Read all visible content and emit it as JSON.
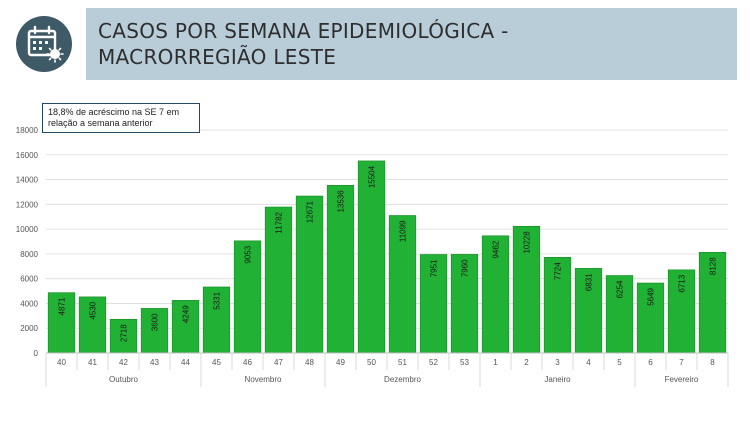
{
  "header": {
    "title_line1": "CASOS POR SEMANA EPIDEMIOLÓGICA -",
    "title_line2": "MACRORREGIÃO LESTE",
    "icon": "calendar-virus-icon"
  },
  "annotation": {
    "line1": "18,8% de acréscimo na SE 7 em",
    "line2": "relação a semana anterior"
  },
  "colors": {
    "bar": "#21b135",
    "bar_stroke": "#178a26",
    "header_bg": "#b9cdd8",
    "icon_bg": "#3f5a67"
  },
  "chart_data": {
    "type": "bar",
    "title": "",
    "xlabel": "",
    "ylabel": "",
    "ylim": [
      0,
      18000
    ],
    "yticks": [
      0,
      2000,
      4000,
      6000,
      8000,
      10000,
      12000,
      14000,
      16000,
      18000
    ],
    "grid": true,
    "categories": [
      "40",
      "41",
      "42",
      "43",
      "44",
      "45",
      "46",
      "47",
      "48",
      "49",
      "50",
      "51",
      "52",
      "53",
      "1",
      "2",
      "3",
      "4",
      "5",
      "6",
      "7",
      "8"
    ],
    "values": [
      4871,
      4530,
      2718,
      3600,
      4249,
      5331,
      9053,
      11782,
      12671,
      13536,
      15504,
      11099,
      7951,
      7960,
      9462,
      10228,
      7724,
      6831,
      6254,
      5649,
      6713,
      8128
    ],
    "month_groups": [
      {
        "label": "Outubro",
        "start": 0,
        "end": 4
      },
      {
        "label": "Novembro",
        "start": 5,
        "end": 8
      },
      {
        "label": "Dezembro",
        "start": 9,
        "end": 13
      },
      {
        "label": "Janeiro",
        "start": 14,
        "end": 18
      },
      {
        "label": "Fevereiro",
        "start": 19,
        "end": 21
      }
    ]
  }
}
